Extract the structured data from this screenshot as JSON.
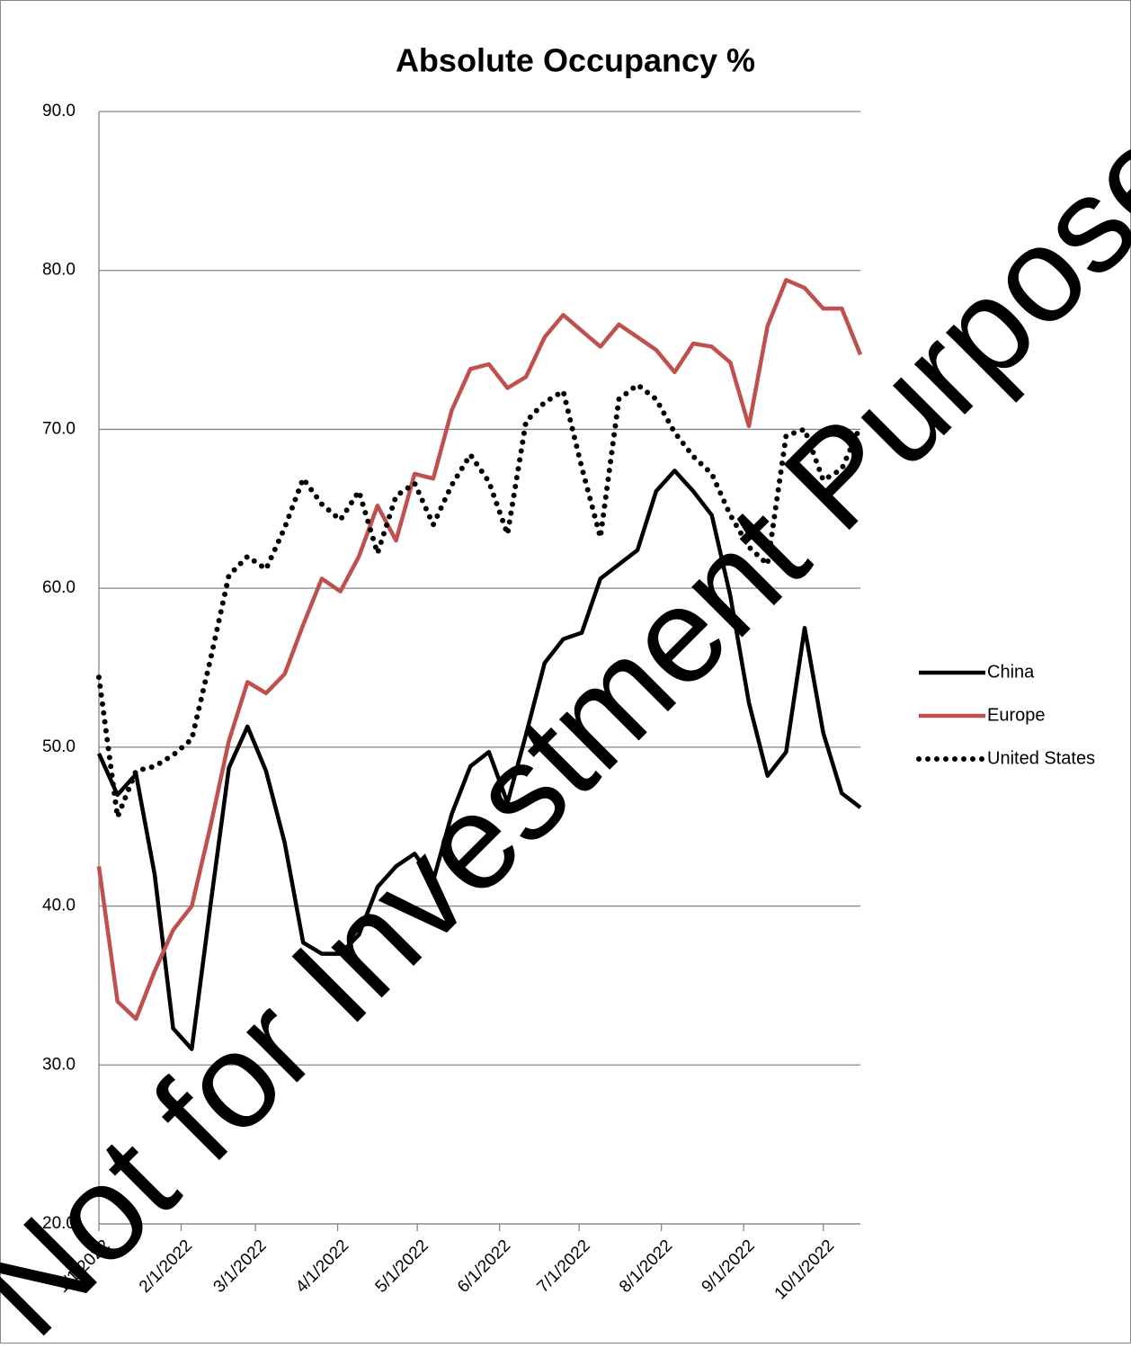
{
  "chart_data": {
    "type": "line",
    "title": "Absolute Occupancy %",
    "watermark": "Not for Investment Purposes",
    "x": [
      "2022-01-01",
      "2022-01-08",
      "2022-01-15",
      "2022-01-22",
      "2022-01-29",
      "2022-02-05",
      "2022-02-12",
      "2022-02-19",
      "2022-02-26",
      "2022-03-05",
      "2022-03-12",
      "2022-03-19",
      "2022-03-26",
      "2022-04-02",
      "2022-04-09",
      "2022-04-16",
      "2022-04-23",
      "2022-04-30",
      "2022-05-07",
      "2022-05-14",
      "2022-05-21",
      "2022-05-28",
      "2022-06-04",
      "2022-06-11",
      "2022-06-18",
      "2022-06-25",
      "2022-07-02",
      "2022-07-09",
      "2022-07-16",
      "2022-07-23",
      "2022-07-30",
      "2022-08-06",
      "2022-08-13",
      "2022-08-20",
      "2022-08-27",
      "2022-09-03",
      "2022-09-10",
      "2022-09-17",
      "2022-09-24",
      "2022-10-01",
      "2022-10-08",
      "2022-10-15"
    ],
    "series": [
      {
        "name": "China",
        "color": "#000000",
        "style": "solid",
        "values": [
          49.6,
          47.0,
          48.3,
          42.0,
          32.3,
          31.0,
          40.0,
          48.7,
          51.3,
          48.5,
          44.0,
          37.7,
          37.0,
          37.0,
          38.2,
          41.2,
          42.5,
          43.3,
          41.6,
          45.8,
          48.8,
          49.7,
          46.5,
          50.8,
          55.3,
          56.8,
          57.2,
          60.6,
          61.5,
          62.4,
          66.1,
          67.4,
          66.1,
          64.6,
          59.5,
          52.8,
          48.2,
          49.7,
          57.5,
          50.9,
          47.1,
          46.2
        ]
      },
      {
        "name": "Europe",
        "color": "#c0504d",
        "style": "solid",
        "values": [
          42.5,
          34.0,
          32.9,
          35.9,
          38.5,
          40.0,
          45.0,
          50.4,
          54.1,
          53.4,
          54.6,
          57.7,
          60.6,
          59.8,
          62.0,
          65.2,
          63.0,
          67.2,
          66.9,
          71.2,
          73.8,
          74.1,
          72.6,
          73.3,
          75.8,
          77.2,
          76.2,
          75.2,
          76.6,
          75.8,
          75.0,
          73.6,
          75.4,
          75.2,
          74.2,
          70.2,
          76.5,
          79.4,
          78.9,
          77.6,
          77.6,
          74.7
        ]
      },
      {
        "name": "United States",
        "color": "#000000",
        "style": "dotted",
        "values": [
          54.4,
          45.6,
          48.5,
          48.8,
          49.5,
          50.5,
          55.5,
          60.8,
          62.0,
          61.2,
          63.8,
          66.9,
          65.3,
          64.3,
          66.1,
          62.2,
          65.8,
          66.6,
          64.0,
          66.5,
          68.4,
          66.7,
          63.4,
          70.5,
          71.7,
          72.4,
          67.6,
          63.2,
          71.9,
          72.8,
          71.9,
          69.8,
          68.3,
          67.2,
          64.6,
          62.6,
          61.5,
          69.6,
          70.0,
          66.8,
          67.5,
          70.2
        ]
      }
    ],
    "xlim": [
      "2022-01-01",
      "2022-10-15"
    ],
    "xticks": [
      {
        "value": "2022-01-01",
        "label": "1/1/2022"
      },
      {
        "value": "2022-02-01",
        "label": "2/1/2022"
      },
      {
        "value": "2022-03-01",
        "label": "3/1/2022"
      },
      {
        "value": "2022-04-01",
        "label": "4/1/2022"
      },
      {
        "value": "2022-05-01",
        "label": "5/1/2022"
      },
      {
        "value": "2022-06-01",
        "label": "6/1/2022"
      },
      {
        "value": "2022-07-01",
        "label": "7/1/2022"
      },
      {
        "value": "2022-08-01",
        "label": "8/1/2022"
      },
      {
        "value": "2022-09-01",
        "label": "9/1/2022"
      },
      {
        "value": "2022-10-01",
        "label": "10/1/2022"
      }
    ],
    "ylim": [
      20,
      90
    ],
    "yticks": [
      {
        "value": 20,
        "label": "20.0"
      },
      {
        "value": 30,
        "label": "30.0"
      },
      {
        "value": 40,
        "label": "40.0"
      },
      {
        "value": 50,
        "label": "50.0"
      },
      {
        "value": 60,
        "label": "60.0"
      },
      {
        "value": 70,
        "label": "70.0"
      },
      {
        "value": 80,
        "label": "80.0"
      },
      {
        "value": 90,
        "label": "90.0"
      }
    ],
    "grid": true,
    "legend": "right"
  }
}
